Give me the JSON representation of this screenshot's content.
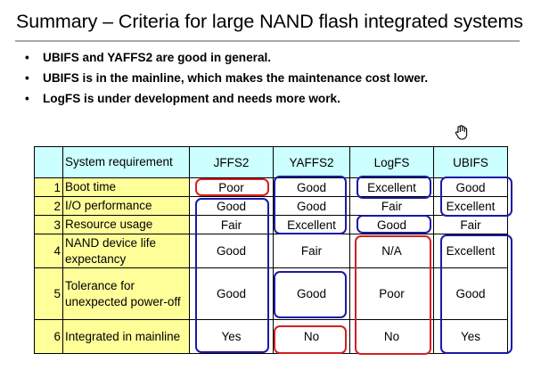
{
  "title": "Summary – Criteria for large NAND flash integrated systems",
  "bullet_glyph": "•",
  "bullets": [
    "UBIFS and YAFFS2 are good in general.",
    "UBIFS is in the mainline, which makes the maintenance cost lower.",
    "LogFS is under development and needs more work."
  ],
  "cursor_icon": "hand-pointer-icon",
  "table": {
    "header": {
      "requirement": "System requirement",
      "jffs2": "JFFS2",
      "yaffs2": "YAFFS2",
      "logfs": "LogFS",
      "ubifs": "UBIFS"
    },
    "rows": [
      {
        "num": "1",
        "requirement": "Boot time",
        "jffs2": "Poor",
        "yaffs2": "Good",
        "logfs": "Excellent",
        "ubifs": "Good"
      },
      {
        "num": "2",
        "requirement": "I/O performance",
        "jffs2": "Good",
        "yaffs2": "Good",
        "logfs": "Fair",
        "ubifs": "Excellent"
      },
      {
        "num": "3",
        "requirement": "Resource usage",
        "jffs2": "Fair",
        "yaffs2": "Excellent",
        "logfs": "Good",
        "ubifs": "Fair"
      },
      {
        "num": "4",
        "requirement": "NAND device life expectancy",
        "jffs2": "Good",
        "yaffs2": "Fair",
        "logfs": "N/A",
        "ubifs": "Excellent"
      },
      {
        "num": "5",
        "requirement": "Tolerance for unexpected power-off",
        "jffs2": "Good",
        "yaffs2": "Good",
        "logfs": "Poor",
        "ubifs": "Good"
      },
      {
        "num": "6",
        "requirement": "Integrated in mainline",
        "jffs2": "Yes",
        "yaffs2": "No",
        "logfs": "No",
        "ubifs": "Yes"
      }
    ]
  },
  "colors": {
    "good_outline": "#1a1aa6",
    "bad_outline": "#d42020",
    "requirement_fill": "#ffff99",
    "header_fill": "#ccffff",
    "title_rule": "#a9a9a9"
  }
}
